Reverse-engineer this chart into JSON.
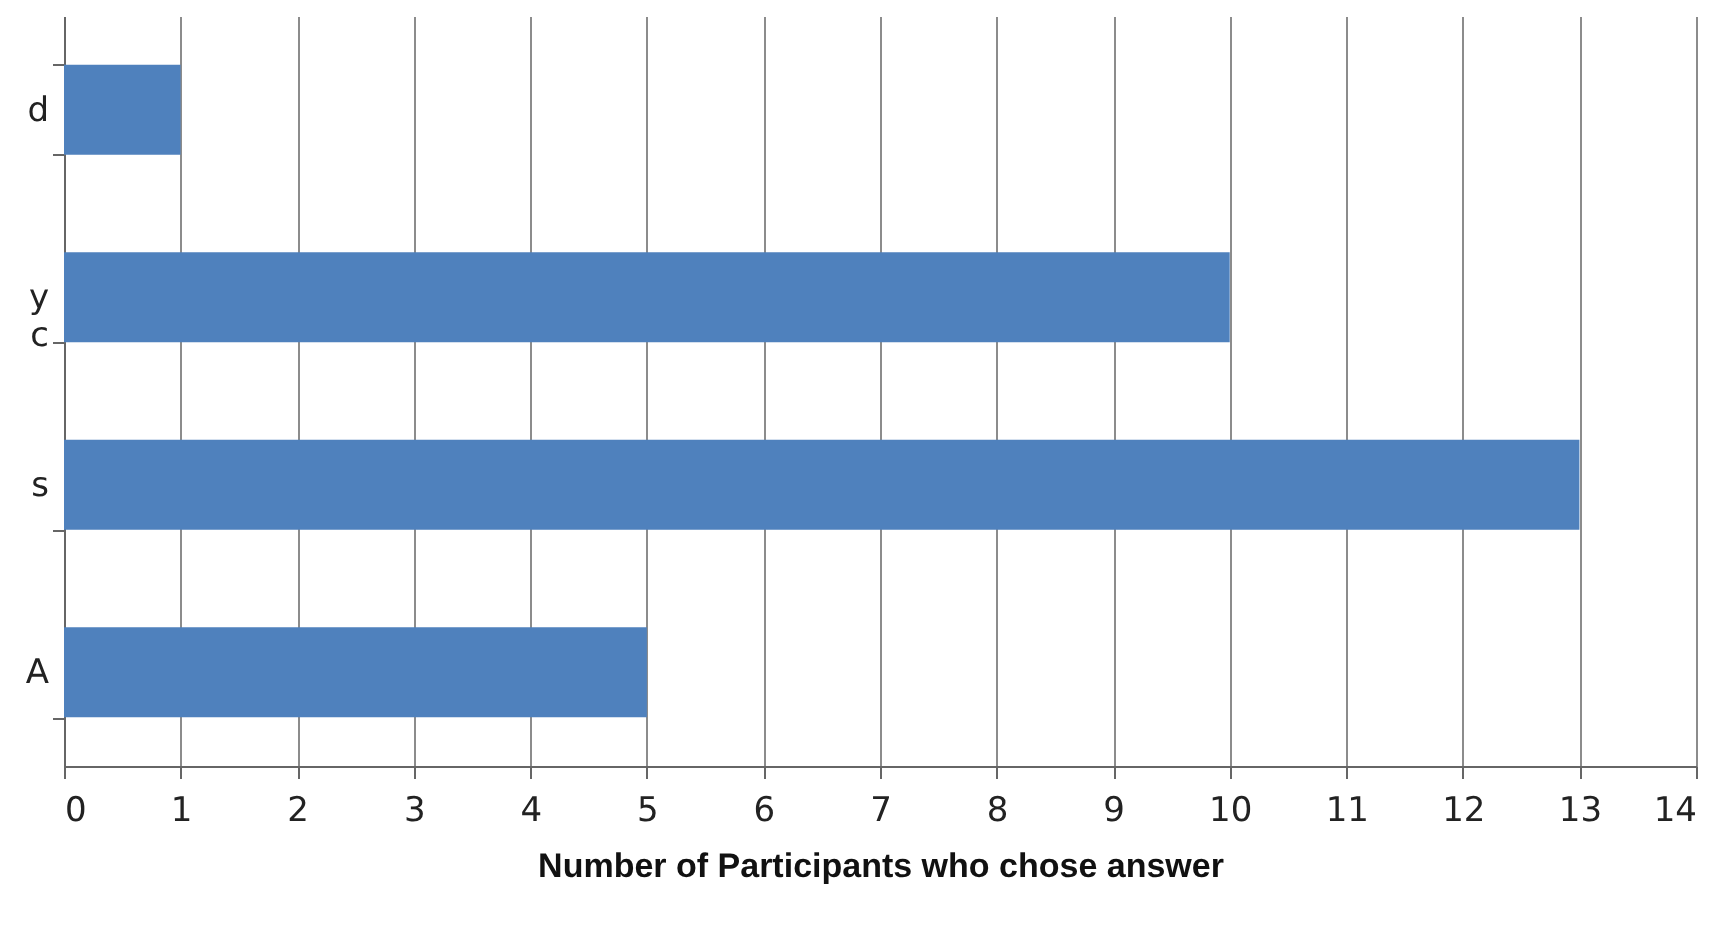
{
  "chart_data": {
    "type": "bar",
    "orientation": "horizontal",
    "xlabel": "Number of Participants who chose answer",
    "categories": [
      "d",
      "y\nc",
      "s",
      "A"
    ],
    "values": [
      1,
      10,
      13,
      5
    ],
    "color": "#4f81bd",
    "xlim": [
      0,
      14
    ],
    "xticks": [
      0,
      1,
      2,
      3,
      4,
      5,
      6,
      7,
      8,
      9,
      10,
      11,
      12,
      13,
      14
    ],
    "grid": "x"
  }
}
